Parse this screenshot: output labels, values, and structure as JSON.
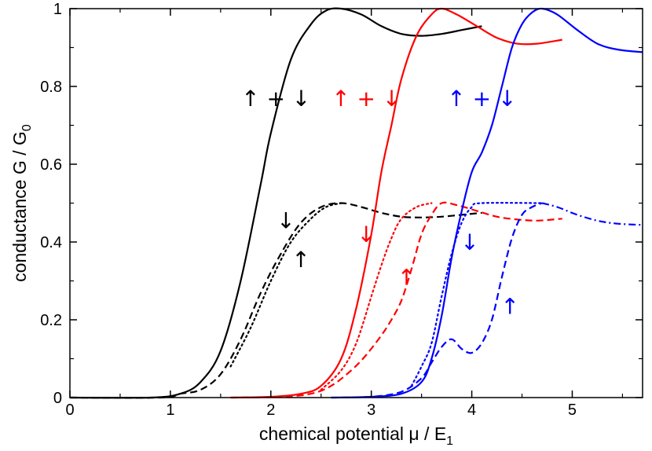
{
  "chart_data": {
    "type": "line",
    "title": "",
    "xlabel": "chemical potential  μ / E",
    "xlabel_sub": "1",
    "ylabel": "conductance  G / G",
    "ylabel_sub": "0",
    "xlim": [
      0,
      5.7
    ],
    "ylim": [
      0,
      1
    ],
    "xticks": [
      0,
      1,
      2,
      3,
      4,
      5
    ],
    "xtick_labels": [
      "0",
      "1",
      "2",
      "3",
      "4",
      "5"
    ],
    "yticks": [
      0,
      0.2,
      0.4,
      0.6,
      0.8,
      1
    ],
    "ytick_labels": [
      "0",
      "0.2",
      "0.4",
      "0.6",
      "0.8",
      "1"
    ],
    "grid": false,
    "series": [
      {
        "color": "#000000",
        "style": "solid",
        "points": [
          [
            0,
            0
          ],
          [
            0.8,
            0
          ],
          [
            1.1,
            0.01
          ],
          [
            1.3,
            0.04
          ],
          [
            1.5,
            0.12
          ],
          [
            1.7,
            0.3
          ],
          [
            1.9,
            0.55
          ],
          [
            2.0,
            0.68
          ],
          [
            2.2,
            0.87
          ],
          [
            2.4,
            0.96
          ],
          [
            2.55,
            0.995
          ],
          [
            2.7,
            1.0
          ],
          [
            2.9,
            0.985
          ],
          [
            3.1,
            0.955
          ],
          [
            3.3,
            0.935
          ],
          [
            3.5,
            0.93
          ],
          [
            3.7,
            0.935
          ],
          [
            3.9,
            0.945
          ],
          [
            4.1,
            0.955
          ]
        ]
      },
      {
        "color": "#000000",
        "style": "dashed",
        "points": [
          [
            0,
            0
          ],
          [
            0.9,
            0
          ],
          [
            1.1,
            0.01
          ],
          [
            1.3,
            0.02
          ],
          [
            1.5,
            0.06
          ],
          [
            1.7,
            0.15
          ],
          [
            1.9,
            0.27
          ],
          [
            2.1,
            0.37
          ],
          [
            2.3,
            0.45
          ],
          [
            2.5,
            0.49
          ],
          [
            2.7,
            0.5
          ],
          [
            2.9,
            0.49
          ],
          [
            3.1,
            0.475
          ],
          [
            3.3,
            0.465
          ],
          [
            3.5,
            0.463
          ],
          [
            3.7,
            0.465
          ],
          [
            3.9,
            0.47
          ],
          [
            4.1,
            0.475
          ]
        ]
      },
      {
        "color": "#000000",
        "style": "dotted",
        "points": [
          [
            1.6,
            0.08
          ],
          [
            1.8,
            0.18
          ],
          [
            2.0,
            0.3
          ],
          [
            2.2,
            0.4
          ],
          [
            2.4,
            0.46
          ],
          [
            2.55,
            0.49
          ],
          [
            2.7,
            0.5
          ]
        ]
      },
      {
        "color": "#ff0000",
        "style": "solid",
        "points": [
          [
            1.6,
            0
          ],
          [
            2.0,
            0.002
          ],
          [
            2.3,
            0.01
          ],
          [
            2.5,
            0.03
          ],
          [
            2.7,
            0.1
          ],
          [
            2.85,
            0.23
          ],
          [
            3.0,
            0.42
          ],
          [
            3.1,
            0.58
          ],
          [
            3.2,
            0.7
          ],
          [
            3.3,
            0.82
          ],
          [
            3.45,
            0.93
          ],
          [
            3.6,
            0.985
          ],
          [
            3.7,
            1.0
          ],
          [
            3.85,
            0.985
          ],
          [
            4.05,
            0.955
          ],
          [
            4.25,
            0.925
          ],
          [
            4.45,
            0.91
          ],
          [
            4.65,
            0.91
          ],
          [
            4.9,
            0.92
          ]
        ]
      },
      {
        "color": "#ff0000",
        "style": "dashed",
        "points": [
          [
            1.6,
            0
          ],
          [
            2.1,
            0.002
          ],
          [
            2.4,
            0.01
          ],
          [
            2.6,
            0.03
          ],
          [
            2.8,
            0.07
          ],
          [
            2.95,
            0.11
          ],
          [
            3.1,
            0.16
          ],
          [
            3.2,
            0.2
          ],
          [
            3.3,
            0.25
          ],
          [
            3.4,
            0.33
          ],
          [
            3.5,
            0.42
          ],
          [
            3.6,
            0.47
          ],
          [
            3.7,
            0.5
          ],
          [
            3.85,
            0.495
          ],
          [
            4.05,
            0.48
          ],
          [
            4.25,
            0.465
          ],
          [
            4.45,
            0.458
          ],
          [
            4.65,
            0.455
          ],
          [
            4.9,
            0.46
          ]
        ]
      },
      {
        "color": "#ff0000",
        "style": "dotted",
        "points": [
          [
            2.5,
            0.02
          ],
          [
            2.7,
            0.07
          ],
          [
            2.85,
            0.14
          ],
          [
            3.0,
            0.26
          ],
          [
            3.1,
            0.34
          ],
          [
            3.2,
            0.41
          ],
          [
            3.3,
            0.46
          ],
          [
            3.45,
            0.49
          ],
          [
            3.6,
            0.5
          ]
        ]
      },
      {
        "color": "#0000ff",
        "style": "solid",
        "points": [
          [
            2.6,
            0
          ],
          [
            3.0,
            0.002
          ],
          [
            3.3,
            0.01
          ],
          [
            3.5,
            0.04
          ],
          [
            3.6,
            0.1
          ],
          [
            3.7,
            0.21
          ],
          [
            3.8,
            0.36
          ],
          [
            3.9,
            0.48
          ],
          [
            4.0,
            0.58
          ],
          [
            4.1,
            0.63
          ],
          [
            4.2,
            0.7
          ],
          [
            4.3,
            0.8
          ],
          [
            4.4,
            0.9
          ],
          [
            4.5,
            0.96
          ],
          [
            4.6,
            0.99
          ],
          [
            4.7,
            1.0
          ],
          [
            4.85,
            0.985
          ],
          [
            5.05,
            0.945
          ],
          [
            5.25,
            0.91
          ],
          [
            5.45,
            0.895
          ],
          [
            5.7,
            0.888
          ]
        ]
      },
      {
        "color": "#0000ff",
        "style": "dashed",
        "points": [
          [
            2.6,
            0
          ],
          [
            3.0,
            0.002
          ],
          [
            3.3,
            0.015
          ],
          [
            3.5,
            0.05
          ],
          [
            3.6,
            0.09
          ],
          [
            3.7,
            0.13
          ],
          [
            3.8,
            0.15
          ],
          [
            3.9,
            0.125
          ],
          [
            4.0,
            0.115
          ],
          [
            4.1,
            0.14
          ],
          [
            4.2,
            0.2
          ],
          [
            4.3,
            0.31
          ],
          [
            4.4,
            0.41
          ],
          [
            4.5,
            0.47
          ],
          [
            4.6,
            0.49
          ],
          [
            4.7,
            0.5
          ]
        ]
      },
      {
        "color": "#0000ff",
        "style": "dotted",
        "points": [
          [
            3.4,
            0.03
          ],
          [
            3.5,
            0.08
          ],
          [
            3.6,
            0.14
          ],
          [
            3.7,
            0.26
          ],
          [
            3.8,
            0.37
          ],
          [
            3.9,
            0.45
          ],
          [
            4.0,
            0.49
          ],
          [
            4.1,
            0.5
          ],
          [
            4.7,
            0.5
          ]
        ]
      },
      {
        "color": "#0000ff",
        "style": "dashdot",
        "points": [
          [
            4.7,
            0.5
          ],
          [
            4.85,
            0.49
          ],
          [
            5.05,
            0.47
          ],
          [
            5.25,
            0.455
          ],
          [
            5.45,
            0.447
          ],
          [
            5.7,
            0.444
          ]
        ]
      }
    ],
    "annotations": [
      {
        "text": "↑ + ↓",
        "color": "#000000",
        "x": 2.05,
        "y": 0.75
      },
      {
        "text": "↑ + ↓",
        "color": "#ff0000",
        "x": 2.95,
        "y": 0.75
      },
      {
        "text": "↑ + ↓",
        "color": "#0000ff",
        "x": 4.1,
        "y": 0.75
      },
      {
        "text": "↓",
        "color": "#000000",
        "x": 2.15,
        "y": 0.435
      },
      {
        "text": "↑",
        "color": "#000000",
        "x": 2.3,
        "y": 0.335
      },
      {
        "text": "↓",
        "color": "#ff0000",
        "x": 2.95,
        "y": 0.4
      },
      {
        "text": "↑",
        "color": "#ff0000",
        "x": 3.35,
        "y": 0.29
      },
      {
        "text": "↓",
        "color": "#0000ff",
        "x": 3.98,
        "y": 0.38
      },
      {
        "text": "↑",
        "color": "#0000ff",
        "x": 4.38,
        "y": 0.215
      }
    ]
  }
}
